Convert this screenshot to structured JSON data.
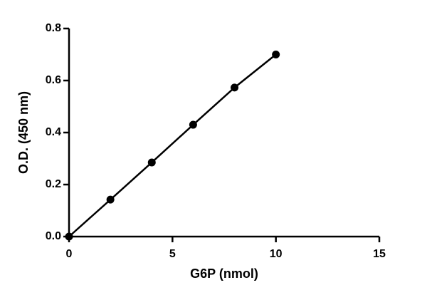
{
  "chart_data": {
    "type": "scatter",
    "connect": true,
    "color": "#000000",
    "x_label": "G6P (nmol)",
    "y_label": "O.D. (450 nm)",
    "x": [
      0,
      2,
      4,
      6,
      8,
      10
    ],
    "values": [
      0.0,
      0.142,
      0.285,
      0.43,
      0.573,
      0.7
    ],
    "xlim": [
      0,
      15
    ],
    "xticks": [
      0,
      5,
      10,
      15
    ],
    "ylim": [
      0,
      0.8
    ],
    "yticks": [
      {
        "value": 0,
        "label": "0.0"
      },
      0.2,
      0.4,
      0.6,
      0.8
    ]
  }
}
